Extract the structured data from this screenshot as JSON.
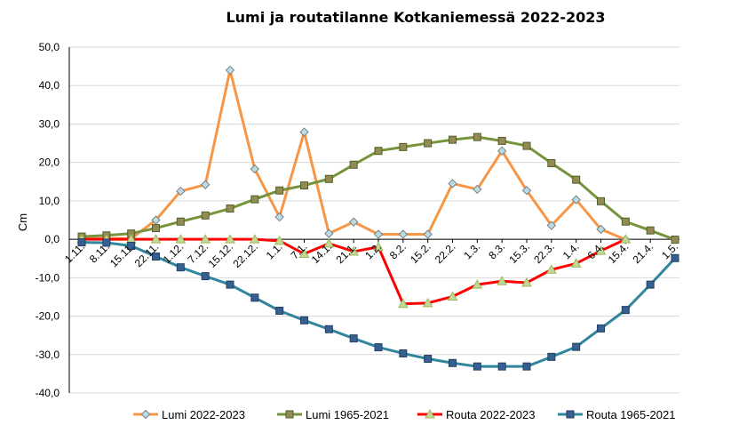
{
  "chart_data": {
    "type": "line",
    "title": "Lumi ja routatilanne Kotkaniemessä 2022-2023",
    "xlabel": "",
    "ylabel": "Cm",
    "ylim": [
      -40,
      50
    ],
    "yticks": [
      "50,0",
      "40,0",
      "30,0",
      "20,0",
      "10,0",
      "0,0",
      "-10,0",
      "-20,0",
      "-30,0",
      "-40,0"
    ],
    "grid": true,
    "legend_position": "bottom",
    "categories": [
      "1.11.",
      "8.11.",
      "15.11.",
      "22.11.",
      "1.12.",
      "7.12.",
      "15.12.",
      "22.12.",
      "1.1.",
      "7.1.",
      "14.1.",
      "21.1.",
      "1.2.",
      "8.2.",
      "15.2.",
      "22.2.",
      "1.3.",
      "8.3.",
      "15.3.",
      "22.3.",
      "1.4.",
      "6.4.",
      "15.4.",
      "21.4.",
      "1.5."
    ],
    "series": [
      {
        "name": "Lumi 2022-2023",
        "color": "#f79646",
        "marker": "diamond",
        "marker_fill": "#b7dee8",
        "marker_stroke": "#7f7f7f",
        "values": [
          0.1,
          0.2,
          0.2,
          5.0,
          12.5,
          14.2,
          44.0,
          18.3,
          5.8,
          27.9,
          1.5,
          4.5,
          1.3,
          1.3,
          1.3,
          14.5,
          13.0,
          23.0,
          12.7,
          3.6,
          10.3,
          2.6,
          -0.1,
          null,
          null
        ]
      },
      {
        "name": "Lumi 1965-2021",
        "color": "#77933c",
        "marker": "square",
        "marker_fill": "#948a54",
        "marker_stroke": "#4f6228",
        "values": [
          0.7,
          1.0,
          1.5,
          2.9,
          4.6,
          6.2,
          8.0,
          10.4,
          12.7,
          14.0,
          15.7,
          19.4,
          23.0,
          24.0,
          25.0,
          25.9,
          26.6,
          25.6,
          24.3,
          19.8,
          15.5,
          9.9,
          4.6,
          2.3,
          -0.1
        ]
      },
      {
        "name": "Routa 2022-2023",
        "color": "#ff0000",
        "marker": "triangle",
        "marker_fill": "#c4d79b",
        "marker_stroke": "#9bbb59",
        "values": [
          0,
          0,
          0,
          0,
          0,
          0,
          0,
          0,
          -0.4,
          -3.8,
          -1.1,
          -3.2,
          -2.0,
          -16.8,
          -16.6,
          -14.9,
          -11.8,
          -10.9,
          -11.3,
          -7.9,
          -6.3,
          -3.0,
          0,
          null,
          null
        ]
      },
      {
        "name": "Routa 1965-2021",
        "color": "#31859c",
        "marker": "square",
        "marker_fill": "#366092",
        "marker_stroke": "#244062",
        "values": [
          -0.8,
          -0.9,
          -1.7,
          -4.5,
          -7.3,
          -9.6,
          -11.8,
          -15.2,
          -18.6,
          -21.1,
          -23.4,
          -25.8,
          -28.1,
          -29.7,
          -31.1,
          -32.2,
          -33.1,
          -33.1,
          -33.1,
          -30.6,
          -28.0,
          -23.2,
          -18.4,
          -11.8,
          -4.9
        ]
      }
    ]
  }
}
